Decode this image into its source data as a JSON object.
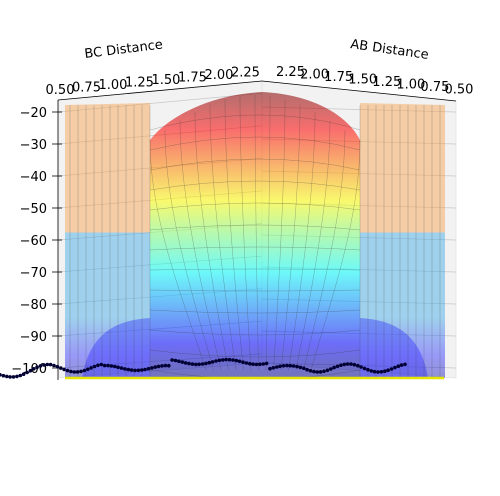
{
  "chart_data": {
    "type": "surface3d",
    "title": "",
    "x_axis": {
      "label": "BC Distance",
      "ticks": [
        "0.50",
        "0.75",
        "1.00",
        "1.25",
        "1.50",
        "1.75",
        "2.00",
        "2.25"
      ],
      "range": [
        0.5,
        2.3
      ]
    },
    "y_axis": {
      "label": "AB Distance",
      "ticks": [
        "2.25",
        "2.00",
        "1.75",
        "1.50",
        "1.25",
        "1.00",
        "0.75",
        "0.50"
      ],
      "range": [
        0.5,
        2.3
      ]
    },
    "z_axis": {
      "label": "",
      "ticks": [
        "−20",
        "−30",
        "−40",
        "−50",
        "−60",
        "−70",
        "−80",
        "−90",
        "−100"
      ],
      "tick_values": [
        -20,
        -30,
        -40,
        -50,
        -60,
        -70,
        -80,
        -90,
        -100
      ],
      "range": [
        -105,
        -18
      ]
    },
    "surface": {
      "colormap": "jet",
      "alpha": 0.35,
      "minimum_energy": -104,
      "plateau_energy": -64,
      "ridge_peak_energy": -22
    },
    "trajectory": {
      "color": "#000033",
      "marker": "dot",
      "approx_energy": -100
    },
    "projection_line": {
      "color": "#e5e500"
    },
    "grid": true,
    "view": "elevated, looking along the AB = BC diagonal"
  }
}
